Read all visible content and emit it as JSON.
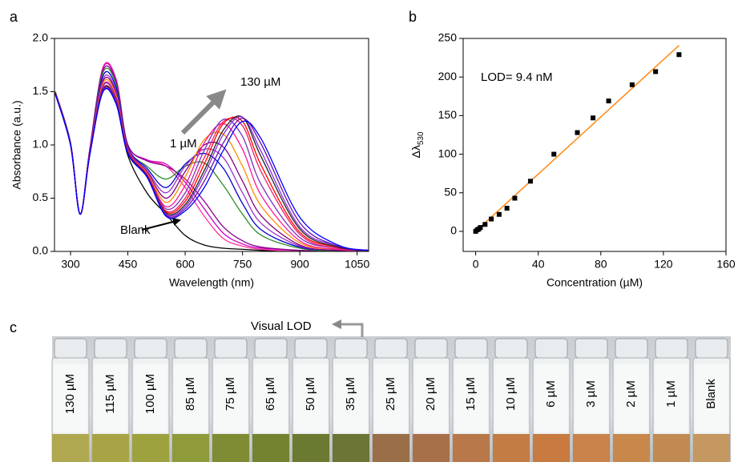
{
  "chart_data": [
    {
      "type": "line",
      "panel": "a",
      "xlabel": "Wavelength (nm)",
      "ylabel": "Absorbance (a.u.)",
      "x": [
        260,
        300,
        325,
        350,
        385,
        420,
        450,
        500,
        550,
        600,
        650,
        700,
        750,
        800,
        900,
        1000,
        1080
      ],
      "xlim": [
        258,
        1080
      ],
      "xticks": [
        300,
        450,
        600,
        750,
        900,
        1050
      ],
      "ylim": [
        0,
        2.0
      ],
      "yticks": [
        {
          "value": 0,
          "label": "0.0"
        },
        {
          "value": 0.5,
          "label": "0.5"
        },
        {
          "value": 1.0,
          "label": "1.0"
        },
        {
          "value": 1.5,
          "label": "1.5"
        },
        {
          "value": 2.0,
          "label": "2.0"
        }
      ],
      "annotations": [
        "130 µM",
        "1 µM",
        "Blank"
      ],
      "series": [
        {
          "color": "#000000",
          "values": [
            1.48,
            1.0,
            0.35,
            0.9,
            1.5,
            1.38,
            0.9,
            0.55,
            0.35,
            0.15,
            0.06,
            0.03,
            0.02,
            0.01,
            0,
            0,
            0
          ]
        },
        {
          "color": "#ff3399",
          "values": [
            1.5,
            1.02,
            0.35,
            0.95,
            1.73,
            1.61,
            1.0,
            0.86,
            0.8,
            0.6,
            0.33,
            0.12,
            0.05,
            0.02,
            0,
            0,
            0
          ]
        },
        {
          "color": "#cc00cc",
          "values": [
            1.5,
            1.02,
            0.35,
            0.95,
            1.72,
            1.6,
            1.0,
            0.86,
            0.82,
            0.65,
            0.4,
            0.17,
            0.07,
            0.03,
            0.01,
            0,
            0
          ]
        },
        {
          "color": "#8b008b",
          "values": [
            1.5,
            1.02,
            0.35,
            0.95,
            1.7,
            1.58,
            1.0,
            0.85,
            0.8,
            0.68,
            0.47,
            0.23,
            0.1,
            0.04,
            0.01,
            0,
            0
          ]
        },
        {
          "color": "#2e8b2e",
          "values": [
            1.5,
            1.02,
            0.35,
            0.94,
            1.68,
            1.56,
            0.98,
            0.8,
            0.68,
            0.8,
            0.83,
            0.62,
            0.35,
            0.15,
            0.03,
            0,
            0
          ]
        },
        {
          "color": "#0000cd",
          "values": [
            1.5,
            1.01,
            0.35,
            0.94,
            1.65,
            1.53,
            0.98,
            0.78,
            0.6,
            0.82,
            0.92,
            0.78,
            0.45,
            0.2,
            0.04,
            0.01,
            0
          ]
        },
        {
          "color": "#9932cc",
          "values": [
            1.5,
            1.01,
            0.35,
            0.93,
            1.62,
            1.5,
            0.97,
            0.76,
            0.55,
            0.8,
            0.96,
            0.88,
            0.55,
            0.26,
            0.05,
            0.01,
            0
          ]
        },
        {
          "color": "#800080",
          "values": [
            1.5,
            1.01,
            0.35,
            0.93,
            1.6,
            1.48,
            0.96,
            0.75,
            0.5,
            0.75,
            1.0,
            0.98,
            0.66,
            0.33,
            0.06,
            0.01,
            0
          ]
        },
        {
          "color": "#ff8c00",
          "values": [
            1.5,
            1.0,
            0.35,
            0.92,
            1.58,
            1.46,
            0.95,
            0.74,
            0.46,
            0.7,
            1.05,
            1.1,
            0.8,
            0.42,
            0.08,
            0.02,
            0
          ]
        },
        {
          "color": "#ff1493",
          "values": [
            1.49,
            1.0,
            0.35,
            0.92,
            1.56,
            1.44,
            0.95,
            0.73,
            0.42,
            0.62,
            1.02,
            1.2,
            0.96,
            0.52,
            0.1,
            0.02,
            0
          ]
        },
        {
          "color": "#7b2fbe",
          "values": [
            1.49,
            1.0,
            0.35,
            0.91,
            1.55,
            1.43,
            0.94,
            0.72,
            0.4,
            0.55,
            0.95,
            1.24,
            1.08,
            0.62,
            0.13,
            0.03,
            0
          ]
        },
        {
          "color": "#e81e63",
          "values": [
            1.49,
            1.0,
            0.35,
            0.91,
            1.53,
            1.41,
            0.94,
            0.72,
            0.38,
            0.5,
            0.88,
            1.22,
            1.18,
            0.74,
            0.16,
            0.03,
            0.01
          ]
        },
        {
          "color": "#ff0000",
          "values": [
            1.49,
            1.0,
            0.35,
            0.91,
            1.52,
            1.4,
            0.93,
            0.71,
            0.37,
            0.47,
            0.82,
            1.2,
            1.22,
            0.8,
            0.18,
            0.04,
            0.01
          ]
        },
        {
          "color": "#222222",
          "values": [
            1.49,
            1.0,
            0.35,
            0.9,
            1.52,
            1.4,
            0.93,
            0.71,
            0.36,
            0.44,
            0.76,
            1.14,
            1.26,
            0.88,
            0.21,
            0.04,
            0.01
          ]
        },
        {
          "color": "#8a2be2",
          "values": [
            1.48,
            1.0,
            0.35,
            0.9,
            1.51,
            1.39,
            0.92,
            0.7,
            0.35,
            0.42,
            0.72,
            1.1,
            1.26,
            0.93,
            0.23,
            0.05,
            0.01
          ]
        },
        {
          "color": "#6a0dad",
          "values": [
            1.48,
            1.0,
            0.35,
            0.9,
            1.5,
            1.38,
            0.92,
            0.7,
            0.34,
            0.4,
            0.66,
            1.02,
            1.25,
            1.0,
            0.27,
            0.05,
            0.01
          ]
        },
        {
          "color": "#0000ff",
          "values": [
            1.48,
            1.0,
            0.35,
            0.9,
            1.5,
            1.38,
            0.92,
            0.7,
            0.33,
            0.38,
            0.6,
            0.95,
            1.22,
            1.05,
            0.32,
            0.06,
            0.01
          ]
        }
      ]
    },
    {
      "type": "scatter",
      "panel": "b",
      "xlabel": "Concentration (µM)",
      "ylabel": "Δλ",
      "ylabel_sub": "530",
      "annotation": "LOD= 9.4 nM",
      "xlim": [
        -8,
        160
      ],
      "xticks": [
        0,
        40,
        80,
        120,
        160
      ],
      "ylim": [
        -26,
        250
      ],
      "yticks": [
        0,
        50,
        100,
        150,
        200,
        250
      ],
      "series": [
        {
          "color": "#000000",
          "x": [
            0,
            1,
            2,
            3,
            6,
            10,
            15,
            20,
            25,
            35,
            50,
            65,
            75,
            85,
            100,
            115,
            130
          ],
          "values": [
            0,
            2,
            3,
            5,
            9,
            16,
            22,
            30,
            43,
            65,
            100,
            128,
            147,
            169,
            190,
            207,
            229
          ]
        }
      ],
      "fit": {
        "color": "#ff8c1a",
        "x": [
          0,
          130
        ],
        "values": [
          0,
          241
        ]
      }
    }
  ],
  "photo": {
    "panel": "c",
    "annotation": "Visual LOD",
    "vials": [
      {
        "label": "130 µM",
        "color": "#b0a850"
      },
      {
        "label": "115 µM",
        "color": "#a8a445"
      },
      {
        "label": "100 µM",
        "color": "#9ea23e"
      },
      {
        "label": "85 µM",
        "color": "#8f9a3a"
      },
      {
        "label": "75 µM",
        "color": "#7f8c34"
      },
      {
        "label": "65 µM",
        "color": "#73832f"
      },
      {
        "label": "50 µM",
        "color": "#6a7a30"
      },
      {
        "label": "35 µM",
        "color": "#6c7436"
      },
      {
        "label": "25 µM",
        "color": "#9a6e48"
      },
      {
        "label": "20 µM",
        "color": "#a87048"
      },
      {
        "label": "15 µM",
        "color": "#b8784a"
      },
      {
        "label": "10 µM",
        "color": "#c47c45"
      },
      {
        "label": "6 µM",
        "color": "#c87a40"
      },
      {
        "label": "3 µM",
        "color": "#c8824a"
      },
      {
        "label": "2 µM",
        "color": "#c8884c"
      },
      {
        "label": "1 µM",
        "color": "#c08a52"
      },
      {
        "label": "Blank",
        "color": "#c49860"
      }
    ]
  }
}
